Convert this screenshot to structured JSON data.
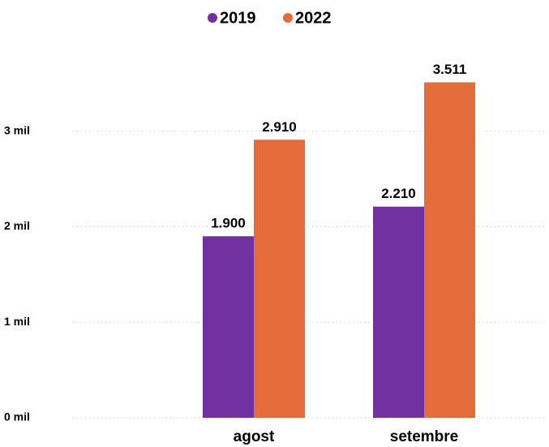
{
  "chart_data": {
    "type": "bar",
    "categories": [
      "agost",
      "setembre"
    ],
    "series": [
      {
        "name": "2019",
        "color": "#7030a0",
        "values": [
          1900,
          2210
        ],
        "value_labels": [
          "1.900",
          "2.210"
        ]
      },
      {
        "name": "2022",
        "color": "#e46c3a",
        "values": [
          2910,
          3511
        ],
        "value_labels": [
          "2.910",
          "3.511"
        ]
      }
    ],
    "ylim": [
      0,
      3600
    ],
    "yticks": [
      {
        "value": 0,
        "label": "0 mil"
      },
      {
        "value": 1000,
        "label": "1 mil"
      },
      {
        "value": 2000,
        "label": "2 mil"
      },
      {
        "value": 3000,
        "label": "3 mil"
      }
    ],
    "grid": true,
    "legend": "top"
  }
}
